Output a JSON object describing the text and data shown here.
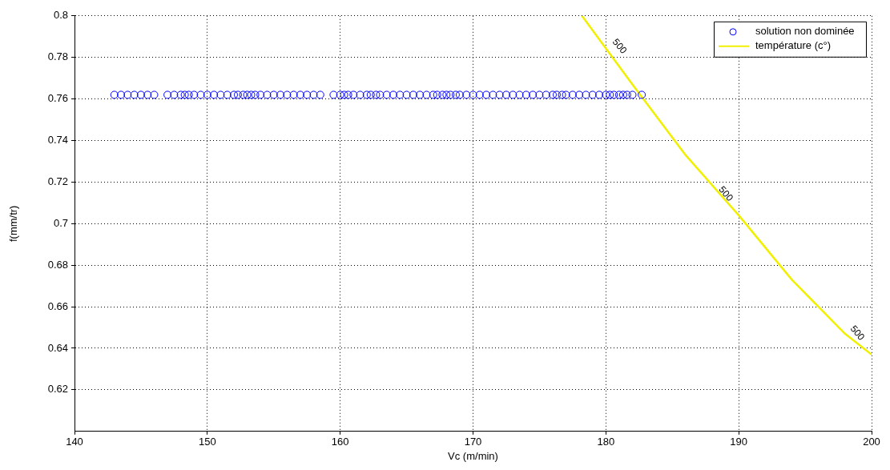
{
  "chart_data": {
    "type": "scatter",
    "xlabel": "Vc (m/min)",
    "ylabel": "f(mm/tr)",
    "xlim": [
      140,
      200
    ],
    "xticks": [
      140,
      150,
      160,
      170,
      180,
      190,
      200
    ],
    "ylim": [
      0.6,
      0.8
    ],
    "yticks": [
      0.62,
      0.64,
      0.66,
      0.68,
      0.7,
      0.72,
      0.74,
      0.76,
      0.78,
      0.8
    ],
    "grid": true,
    "legend": "top right",
    "series": [
      {
        "name": "solution non dominée",
        "type": "scatter",
        "marker": "circle",
        "color": "#0000ff",
        "x": [
          143,
          143.5,
          144,
          144.5,
          145,
          145.5,
          146,
          147,
          147.5,
          148,
          148.3,
          148.6,
          149,
          149.5,
          150,
          150.5,
          151,
          151.5,
          152,
          152.3,
          152.7,
          153,
          153.3,
          153.6,
          154,
          154.5,
          155,
          155.5,
          156,
          156.5,
          157,
          157.5,
          158,
          158.5,
          159.5,
          160,
          160.3,
          160.6,
          161,
          161.5,
          162,
          162.3,
          162.7,
          163,
          163.5,
          164,
          164.5,
          165,
          165.5,
          166,
          166.5,
          167,
          167.3,
          167.7,
          168,
          168.3,
          168.7,
          169,
          169.5,
          170,
          170.5,
          171,
          171.5,
          172,
          172.5,
          173,
          173.5,
          174,
          174.5,
          175,
          175.5,
          176,
          176.3,
          176.7,
          177,
          177.5,
          178,
          178.5,
          179,
          179.5,
          180,
          180.3,
          180.6,
          181,
          181.3,
          181.6,
          182,
          182.7
        ],
        "values": [
          0.762,
          0.762,
          0.762,
          0.762,
          0.762,
          0.762,
          0.762,
          0.762,
          0.762,
          0.762,
          0.762,
          0.762,
          0.762,
          0.762,
          0.762,
          0.762,
          0.762,
          0.762,
          0.762,
          0.762,
          0.762,
          0.762,
          0.762,
          0.762,
          0.762,
          0.762,
          0.762,
          0.762,
          0.762,
          0.762,
          0.762,
          0.762,
          0.762,
          0.762,
          0.762,
          0.762,
          0.762,
          0.762,
          0.762,
          0.762,
          0.762,
          0.762,
          0.762,
          0.762,
          0.762,
          0.762,
          0.762,
          0.762,
          0.762,
          0.762,
          0.762,
          0.762,
          0.762,
          0.762,
          0.762,
          0.762,
          0.762,
          0.762,
          0.762,
          0.762,
          0.762,
          0.762,
          0.762,
          0.762,
          0.762,
          0.762,
          0.762,
          0.762,
          0.762,
          0.762,
          0.762,
          0.762,
          0.762,
          0.762,
          0.762,
          0.762,
          0.762,
          0.762,
          0.762,
          0.762,
          0.762,
          0.762,
          0.762,
          0.762,
          0.762,
          0.762,
          0.762,
          0.762
        ]
      },
      {
        "name": "température (c°)",
        "type": "line",
        "marker": "none",
        "line_style": "solid",
        "color": "#f0f000",
        "x": [
          178.2,
          182,
          186,
          190,
          194,
          198,
          200
        ],
        "values": [
          0.8,
          0.767,
          0.733,
          0.704,
          0.673,
          0.647,
          0.637
        ]
      }
    ],
    "annotations": [
      {
        "text": "500",
        "x": 180.6,
        "y": 0.783
      },
      {
        "text": "500",
        "x": 188.6,
        "y": 0.712
      },
      {
        "text": "500",
        "x": 198.5,
        "y": 0.645
      }
    ]
  }
}
